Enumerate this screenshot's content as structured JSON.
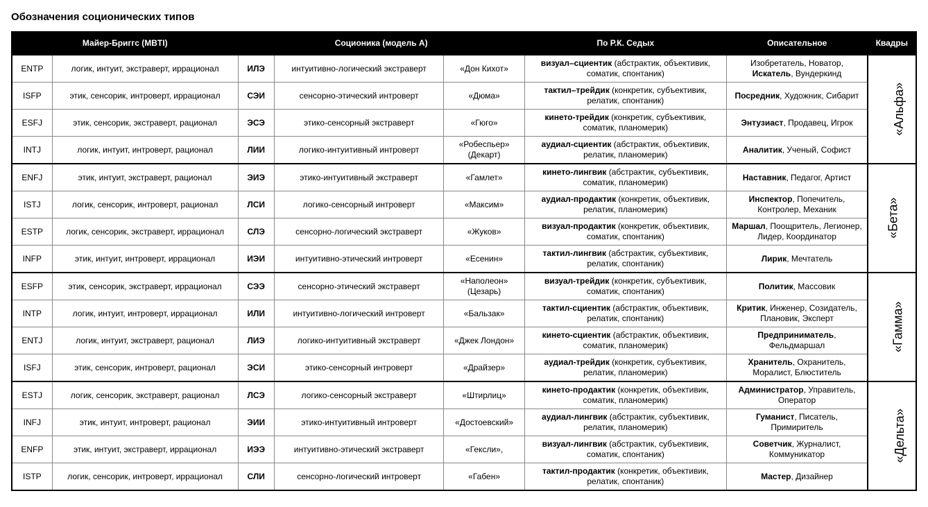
{
  "title": "Обозначения соционических типов",
  "headers": {
    "mbti": "Майер-Бриггс (MBTI)",
    "socionics": "Соционика (модель А)",
    "sedykh": "По Р.К. Седых",
    "descriptive": "Описательное",
    "quadra": "Квадры"
  },
  "colors": {
    "header_bg": "#000000",
    "header_fg": "#ffffff",
    "border": "#888888",
    "heavy_border": "#000000",
    "background": "#ffffff",
    "text": "#000000"
  },
  "font": {
    "family": "Arial",
    "body_size_pt": 9,
    "title_size_pt": 11,
    "quadra_size_pt": 14
  },
  "quadras": [
    {
      "name": "«Альфа»",
      "rows": [
        {
          "mbti_code": "ENTP",
          "mbti_desc": "логик, интуит, экстраверт, иррационал",
          "soc_code": "ИЛЭ",
          "soc_desc": "интуитивно-логический экстраверт",
          "nickname": "«Дон Кихот»",
          "sedykh_bold": "визуал–сциентик",
          "sedykh_rest": " (абстрактик, объективик, соматик, спонтаник)",
          "descriptive_bold": "Искатель",
          "descriptive_rest_before": "Изобретатель, Новатор, ",
          "descriptive_rest_after": ", Вундеркинд"
        },
        {
          "mbti_code": "ISFP",
          "mbti_desc": "этик, сенсорик, интроверт, иррационал",
          "soc_code": "СЭИ",
          "soc_desc": "сенсорно-этический интроверт",
          "nickname": "«Дюма»",
          "sedykh_bold": "тактил–трейдик",
          "sedykh_rest": " (конкретик, субъективик, релатик, спонтаник)",
          "descriptive_bold": "Посредник",
          "descriptive_rest_after": ", Художник, Сибарит"
        },
        {
          "mbti_code": "ESFJ",
          "mbti_desc": "этик, сенсорик, экстраверт, рационал",
          "soc_code": "ЭСЭ",
          "soc_desc": "этико-сенсорный экстраверт",
          "nickname": "«Гюго»",
          "sedykh_bold": "кинето-трейдик",
          "sedykh_rest": " (конкретик, субъективик, соматик, планомерик)",
          "descriptive_bold": "Энтузиаст",
          "descriptive_rest_after": ", Продавец, Игрок"
        },
        {
          "mbti_code": "INTJ",
          "mbti_desc": "логик, интуит, интроверт, рационал",
          "soc_code": "ЛИИ",
          "soc_desc": "логико-интуитивный интроверт",
          "nickname": "«Робеспьер» (Декарт)",
          "sedykh_bold": "аудиал-сциентик",
          "sedykh_rest": " (абстрактик, объективик, релатик, планомерик)",
          "descriptive_bold": "Аналитик",
          "descriptive_rest_after": ", Ученый, Софист"
        }
      ]
    },
    {
      "name": "«Бета»",
      "rows": [
        {
          "mbti_code": "ENFJ",
          "mbti_desc": "этик, интуит, экстраверт, рационал",
          "soc_code": "ЭИЭ",
          "soc_desc": "этико-интуитивный экстраверт",
          "nickname": "«Гамлет»",
          "sedykh_bold": "кинето-лингвик",
          "sedykh_rest": " (абстрактик, субъективик, соматик, планомерик)",
          "descriptive_bold": "Наставник",
          "descriptive_rest_after": ", Педагог, Артист"
        },
        {
          "mbti_code": "ISTJ",
          "mbti_desc": "логик, сенсорик, интроверт, рационал",
          "soc_code": "ЛСИ",
          "soc_desc": "логико-сенсорный интроверт",
          "nickname": "«Максим»",
          "sedykh_bold": "аудиал-продактик",
          "sedykh_rest": " (конкретик, объективик, релатик, планомерик)",
          "descriptive_bold": "Инспектор",
          "descriptive_rest_after": ", Попечитель, Контролер, Механик"
        },
        {
          "mbti_code": "ESTP",
          "mbti_desc": "логик, сенсорик, экстраверт, иррационал",
          "soc_code": "СЛЭ",
          "soc_desc": "сенсорно-логический экстраверт",
          "nickname": "«Жуков»",
          "sedykh_bold": "визуал-продактик",
          "sedykh_rest": " (конкретик, объективик, соматик, спонтаник)",
          "descriptive_bold": "Маршал",
          "descriptive_rest_after": ", Поощритель, Легионер, Лидер, Координатор"
        },
        {
          "mbti_code": "INFP",
          "mbti_desc": "этик, интуит, интроверт, иррационал",
          "soc_code": "ИЭИ",
          "soc_desc": "интуитивно-этический интроверт",
          "nickname": "«Есенин»",
          "sedykh_bold": "тактил-лингвик",
          "sedykh_rest": " (абстрактик, субъективик, релатик, спонтаник)",
          "descriptive_bold": "Лирик",
          "descriptive_rest_after": ", Мечтатель"
        }
      ]
    },
    {
      "name": "«Гамма»",
      "rows": [
        {
          "mbti_code": "ESFP",
          "mbti_desc": "этик, сенсорик, экстраверт, иррационал",
          "soc_code": "СЭЭ",
          "soc_desc": "сенсорно-этический экстраверт",
          "nickname": "«Наполеон» (Цезарь)",
          "sedykh_bold": "визуал-трейдик",
          "sedykh_rest": " (конкретик, субъективик, соматик, спонтаник)",
          "descriptive_bold": "Политик",
          "descriptive_rest_after": ", Массовик"
        },
        {
          "mbti_code": "INTP",
          "mbti_desc": "логик, интуит, интроверт, иррационал",
          "soc_code": "ИЛИ",
          "soc_desc": "интуитивно-логический интроверт",
          "nickname": "«Бальзак»",
          "sedykh_bold": "тактил-сциентик",
          "sedykh_rest": " (абстрактик, объективик, релатик, спонтаник)",
          "descriptive_bold": "Критик",
          "descriptive_rest_after": ", Инженер, Созидатель, Плановик, Эксперт"
        },
        {
          "mbti_code": "ENTJ",
          "mbti_desc": "логик, интуит, экстраверт, рационал",
          "soc_code": "ЛИЭ",
          "soc_desc": "логико-интуитивный экстраверт",
          "nickname": "«Джек Лондон»",
          "sedykh_bold": "кинето-сциентик",
          "sedykh_rest": " (абстрактик, объективик, соматик, планомерик)",
          "descriptive_bold": "Предприниматель",
          "descriptive_rest_after": ", Фельдмаршал"
        },
        {
          "mbti_code": "ISFJ",
          "mbti_desc": "этик, сенсорик, интроверт, рационал",
          "soc_code": "ЭСИ",
          "soc_desc": "этико-сенсорный интроверт",
          "nickname": "«Драйзер»",
          "sedykh_bold": "аудиал-трейдик",
          "sedykh_rest": " (конкретик, субъективик, релатик, планомерик)",
          "descriptive_bold": "Хранитель",
          "descriptive_rest_after": ", Охранитель, Моралист, Блюститель"
        }
      ]
    },
    {
      "name": "«Дельта»",
      "rows": [
        {
          "mbti_code": "ESTJ",
          "mbti_desc": "логик, сенсорик, экстраверт, рационал",
          "soc_code": "ЛСЭ",
          "soc_desc": "логико-сенсорный экстраверт",
          "nickname": "«Штирлиц»",
          "sedykh_bold": "кинето-продактик",
          "sedykh_rest": " (конкретик, объективик, соматик, планомерик)",
          "descriptive_bold": "Администратор",
          "descriptive_rest_after": ", Управитель, Оператор"
        },
        {
          "mbti_code": "INFJ",
          "mbti_desc": "этик, интуит, интроверт, рационал",
          "soc_code": "ЭИИ",
          "soc_desc": "этико-интуитивный интроверт",
          "nickname": "«Достоевский»",
          "sedykh_bold": "аудиал-лингвик",
          "sedykh_rest": " (абстрактик, субъективик, релатик, планомерик)",
          "descriptive_bold": "Гуманист",
          "descriptive_rest_after": ", Писатель, Примиритель"
        },
        {
          "mbti_code": "ENFP",
          "mbti_desc": "этик, интуит, экстраверт, иррационал",
          "soc_code": "ИЭЭ",
          "soc_desc": "интуитивно-этический экстраверт",
          "nickname": "«Гексли»,",
          "sedykh_bold": "визуал-лингвик",
          "sedykh_rest": " (абстрактик, субъективик, соматик, спонтаник)",
          "descriptive_bold": "Советчик",
          "descriptive_rest_after": ", Журналист, Коммуникатор"
        },
        {
          "mbti_code": "ISTP",
          "mbti_desc": "логик, сенсорик, интроверт, иррационал",
          "soc_code": "СЛИ",
          "soc_desc": "сенсорно-логический интроверт",
          "nickname": "«Габен»",
          "sedykh_bold": "тактил-продактик",
          "sedykh_rest": " (конкретик, объективик, релатик, спонтаник)",
          "descriptive_bold": "Мастер",
          "descriptive_rest_after": ", Дизайнер"
        }
      ]
    }
  ]
}
